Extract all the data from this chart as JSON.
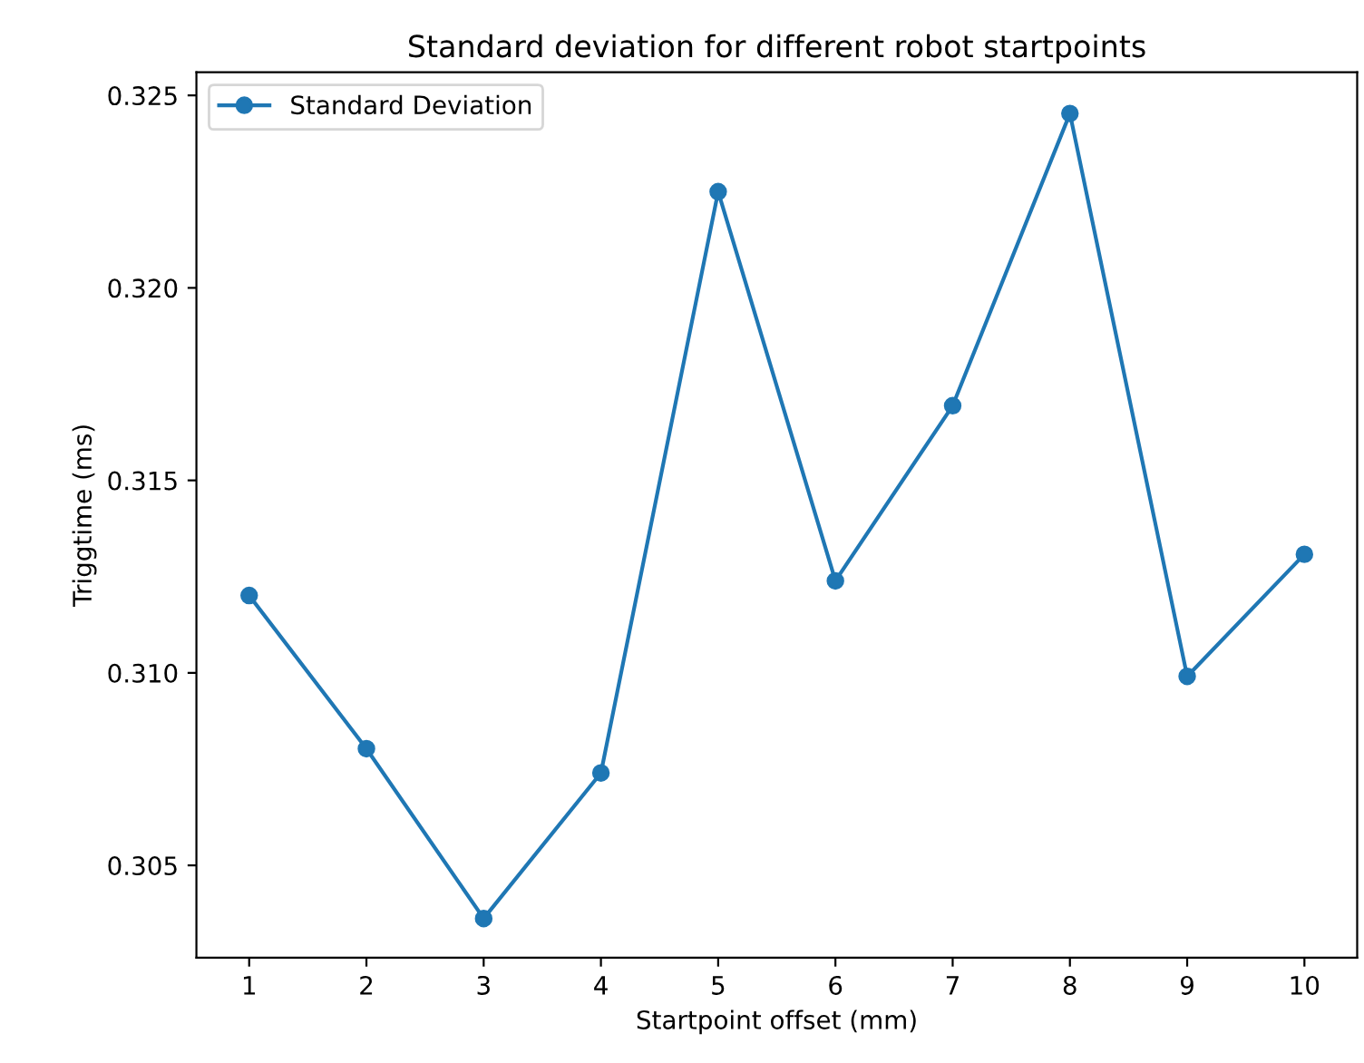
{
  "chart_data": {
    "type": "line",
    "title": "Standard deviation for different robot startpoints",
    "xlabel": "Startpoint offset (mm)",
    "ylabel": "Triggtime (ms)",
    "x": [
      1,
      2,
      3,
      4,
      5,
      6,
      7,
      8,
      9,
      10
    ],
    "series": [
      {
        "name": "Standard Deviation",
        "color": "#1f77b4",
        "values": [
          0.31201,
          0.30803,
          0.30362,
          0.3074,
          0.3225,
          0.31239,
          0.31694,
          0.32453,
          0.30991,
          0.31308
        ]
      }
    ],
    "xlim": [
      0.55,
      10.45
    ],
    "xticks": [
      1,
      2,
      3,
      4,
      5,
      6,
      7,
      8,
      9,
      10
    ],
    "ylim": [
      0.3026,
      0.3256
    ],
    "yticks": [
      {
        "value": 0.305,
        "label": "0.305"
      },
      {
        "value": 0.31,
        "label": "0.310"
      },
      {
        "value": 0.315,
        "label": "0.315"
      },
      {
        "value": 0.32,
        "label": "0.320"
      },
      {
        "value": 0.325,
        "label": "0.325"
      }
    ],
    "marker": "circle",
    "line_style": "solid",
    "legend": "top left",
    "grid": false
  }
}
